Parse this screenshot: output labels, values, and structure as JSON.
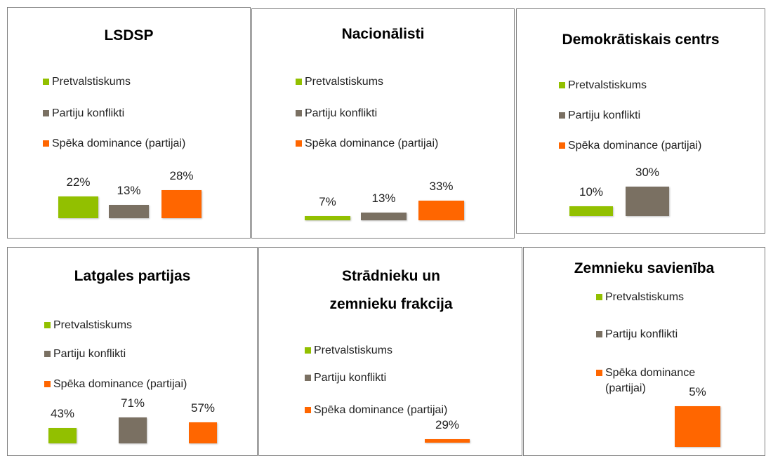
{
  "chart_data": [
    {
      "type": "bar",
      "title": "LSDSP",
      "series": [
        {
          "name": "Pretvalstiskums",
          "color": "#92c000",
          "values": [
            22
          ],
          "value_labels": [
            "22%"
          ]
        },
        {
          "name": "Partiju konflikti",
          "color": "#7a7062",
          "values": [
            13
          ],
          "value_labels": [
            "13%"
          ]
        },
        {
          "name": "Spēka dominance (partijai)",
          "color": "#ff6600",
          "values": [
            28
          ],
          "value_labels": [
            "28%"
          ]
        }
      ]
    },
    {
      "type": "bar",
      "title": "Nacionālisti",
      "series": [
        {
          "name": "Pretvalstiskums",
          "color": "#92c000",
          "values": [
            7
          ],
          "value_labels": [
            "7%"
          ]
        },
        {
          "name": "Partiju konflikti",
          "color": "#7a7062",
          "values": [
            13
          ],
          "value_labels": [
            "13%"
          ]
        },
        {
          "name": "Spēka dominance (partijai)",
          "color": "#ff6600",
          "values": [
            33
          ],
          "value_labels": [
            "33%"
          ]
        }
      ]
    },
    {
      "type": "bar",
      "title": "Demokrātiskais centrs",
      "series": [
        {
          "name": "Pretvalstiskums",
          "color": "#92c000",
          "values": [
            10
          ],
          "value_labels": [
            "10%"
          ]
        },
        {
          "name": "Partiju konflikti",
          "color": "#7a7062",
          "values": [
            30
          ],
          "value_labels": [
            "30%"
          ]
        },
        {
          "name": "Spēka dominance (partijai)",
          "color": "#ff6600",
          "values": [
            null
          ],
          "value_labels": [
            null
          ]
        }
      ]
    },
    {
      "type": "bar",
      "title": "Latgales partijas",
      "series": [
        {
          "name": "Pretvalstiskums",
          "color": "#92c000",
          "values": [
            43
          ],
          "value_labels": [
            "43%"
          ]
        },
        {
          "name": "Partiju konflikti",
          "color": "#7a7062",
          "values": [
            71
          ],
          "value_labels": [
            "71%"
          ]
        },
        {
          "name": "Spēka dominance (partijai)",
          "color": "#ff6600",
          "values": [
            57
          ],
          "value_labels": [
            "57%"
          ]
        }
      ]
    },
    {
      "type": "bar",
      "title": "Strādnieku un zemnieku frakcija",
      "series": [
        {
          "name": "Pretvalstiskums",
          "color": "#92c000",
          "values": [
            null
          ],
          "value_labels": [
            null
          ]
        },
        {
          "name": "Partiju konflikti",
          "color": "#7a7062",
          "values": [
            null
          ],
          "value_labels": [
            null
          ]
        },
        {
          "name": "Spēka dominance (partijai)",
          "color": "#ff6600",
          "values": [
            29
          ],
          "value_labels": [
            "29%"
          ]
        }
      ]
    },
    {
      "type": "bar",
      "title": "Zemnieku savienība",
      "series": [
        {
          "name": "Pretvalstiskums",
          "color": "#92c000",
          "values": [
            null
          ],
          "value_labels": [
            null
          ]
        },
        {
          "name": "Partiju konflikti",
          "color": "#7a7062",
          "values": [
            null
          ],
          "value_labels": [
            null
          ]
        },
        {
          "name": "Spēka dominance (partijai)",
          "color": "#ff6600",
          "values": [
            5
          ],
          "value_labels": [
            "5%"
          ]
        }
      ]
    }
  ]
}
